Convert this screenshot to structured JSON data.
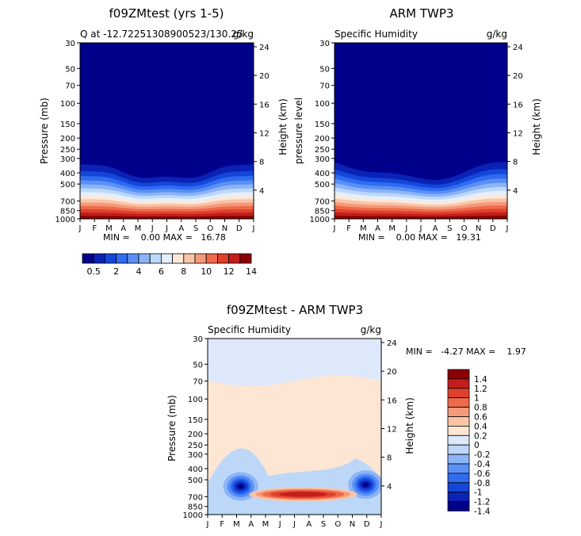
{
  "colors": {
    "palette": [
      "#00008b",
      "#0a22b5",
      "#1447d9",
      "#2f6cf0",
      "#5a90f5",
      "#8cb4f7",
      "#bcd7f8",
      "#e3efff",
      "#fde8d8",
      "#f9c4a8",
      "#f49a78",
      "#ee6a4a",
      "#e0402b",
      "#c21e1e",
      "#8b0000"
    ],
    "diff_palette": [
      "#00008b",
      "#0a22b5",
      "#1447d9",
      "#2f6cf0",
      "#5a90f5",
      "#8cb4f7",
      "#bcd7f8",
      "#dde9fb",
      "#fde6d3",
      "#f9c4a8",
      "#f49a78",
      "#ee6a4a",
      "#e0402b",
      "#c21e1e",
      "#8b0000"
    ]
  },
  "chart_data": [
    {
      "type": "heatmap",
      "title": "f09ZMtest (yrs 1-5)",
      "subtitle_left": "Q at -12.72251308900523/130.25",
      "subtitle_right": "g/kg",
      "ylabel_left": "Pressure (mb)",
      "ylabel_right": "Height (km)",
      "months": [
        "J",
        "F",
        "M",
        "A",
        "M",
        "J",
        "J",
        "A",
        "S",
        "O",
        "N",
        "D",
        "J"
      ],
      "pressure_ticks": [
        "30",
        "50",
        "70",
        "100",
        "150",
        "200",
        "250",
        "300",
        "400",
        "500",
        "700",
        "850",
        "1000"
      ],
      "height_ticks": [
        "24",
        "20",
        "16",
        "12",
        "8",
        "4"
      ],
      "stats": "MIN =    0.00 MAX =   16.78",
      "min": 0.0,
      "max": 16.78
    },
    {
      "type": "heatmap",
      "title": "ARM TWP3",
      "subtitle_left": "Specific Humidity",
      "subtitle_right": "g/kg",
      "ylabel_left": "pressure level",
      "ylabel_right": "Height (km)",
      "months": [
        "J",
        "F",
        "M",
        "A",
        "M",
        "J",
        "J",
        "A",
        "S",
        "O",
        "N",
        "D",
        "J"
      ],
      "pressure_ticks": [
        "30",
        "50",
        "70",
        "100",
        "150",
        "200",
        "250",
        "300",
        "400",
        "500",
        "700",
        "850",
        "1000"
      ],
      "height_ticks": [
        "24",
        "20",
        "16",
        "12",
        "8",
        "4"
      ],
      "stats": "MIN =    0.00 MAX =   19.31",
      "min": 0.0,
      "max": 19.31
    },
    {
      "type": "heatmap",
      "title": "f09ZMtest - ARM TWP3",
      "subtitle_left": "Specific Humidity",
      "subtitle_right": "g/kg",
      "ylabel_left": "Pressure (mb)",
      "ylabel_right": "Height (km)",
      "months": [
        "J",
        "F",
        "M",
        "A",
        "M",
        "J",
        "J",
        "A",
        "S",
        "O",
        "N",
        "D",
        "J"
      ],
      "pressure_ticks": [
        "30",
        "50",
        "70",
        "100",
        "150",
        "200",
        "250",
        "300",
        "400",
        "500",
        "700",
        "850",
        "1000"
      ],
      "height_ticks": [
        "24",
        "20",
        "16",
        "12",
        "8",
        "4"
      ],
      "stats": "MIN =   -4.27 MAX =    1.97",
      "min": -4.27,
      "max": 1.97
    }
  ],
  "colorbar_top": {
    "labels": [
      "0.5",
      "2",
      "4",
      "6",
      "8",
      "10",
      "12",
      "14"
    ]
  },
  "colorbar_diff": {
    "labels": [
      "1.4",
      "1.2",
      "1",
      "0.8",
      "0.6",
      "0.4",
      "0.2",
      "0",
      "-0.2",
      "-0.4",
      "-0.6",
      "-0.8",
      "-1",
      "-1.2",
      "-1.4"
    ]
  }
}
